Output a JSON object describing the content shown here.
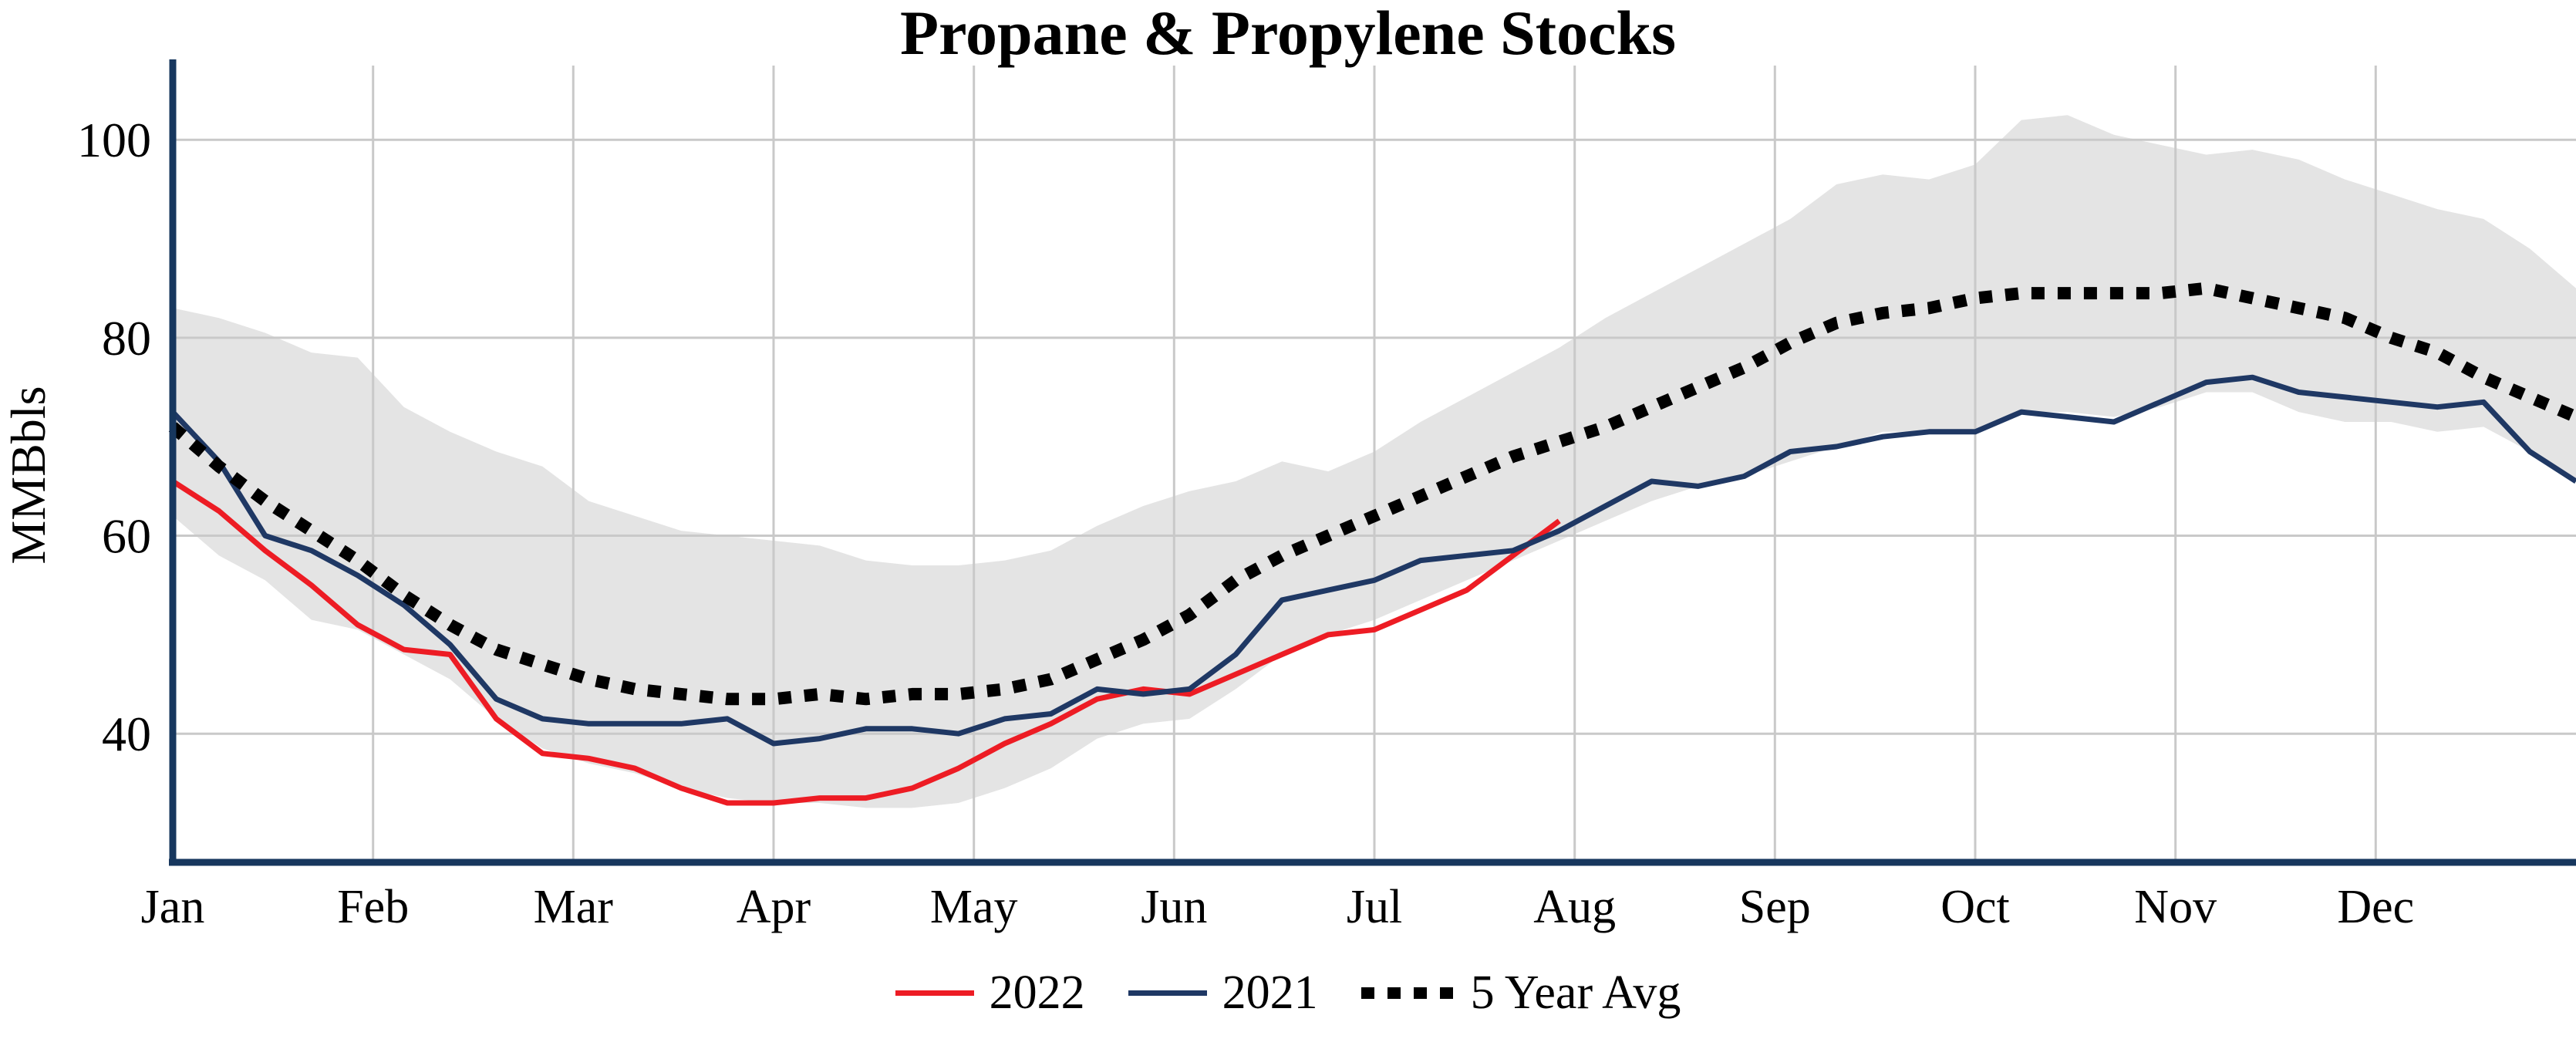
{
  "title": "Propane & Propylene Stocks",
  "ylabel": "MMBbls",
  "legend": [
    {
      "label": "2022"
    },
    {
      "label": "2021"
    },
    {
      "label": "5 Year Avg"
    }
  ],
  "chart_data": {
    "type": "line",
    "title": "Propane & Propylene Stocks",
    "xlabel": "",
    "ylabel": "MMBbls",
    "x_unit": "week-of-year (0-52), Jan 1 at left edge",
    "months": [
      "Jan",
      "Feb",
      "Mar",
      "Apr",
      "May",
      "Jun",
      "Jul",
      "Aug",
      "Sep",
      "Oct",
      "Nov",
      "Dec"
    ],
    "yticks": [
      40,
      60,
      80,
      100
    ],
    "ylim": [
      27,
      107.5
    ],
    "grid": true,
    "grid_color": "#c9c9c9",
    "axis_color": "#17375e",
    "legend_position": "bottom-center",
    "band": {
      "color": "#e4e4e4",
      "upper": [
        83,
        82,
        80.5,
        78.5,
        78,
        73,
        70.5,
        68.5,
        67,
        63.5,
        62,
        60.5,
        60,
        59.5,
        59,
        57.5,
        57,
        57,
        57.5,
        58.5,
        61,
        63,
        64.5,
        65.5,
        67.5,
        66.5,
        68.5,
        71.5,
        74,
        76.5,
        79,
        82,
        84.5,
        87,
        89.5,
        92,
        95.5,
        96.5,
        96,
        97.5,
        102,
        102.5,
        100.5,
        99.5,
        98.5,
        99,
        98,
        96,
        94.5,
        93,
        92,
        89,
        85
      ],
      "lower": [
        62,
        58,
        55.5,
        51.5,
        50.5,
        48,
        45.5,
        41.5,
        38.5,
        37,
        36,
        34.5,
        33.5,
        33,
        33,
        32.5,
        32.5,
        33,
        34.5,
        36.5,
        39.5,
        41,
        41.5,
        44.5,
        48,
        50,
        51.5,
        53.5,
        55.5,
        57.5,
        59.5,
        61.5,
        63.5,
        65,
        66,
        67.5,
        69,
        70.5,
        70.5,
        70.5,
        72.5,
        72.5,
        72,
        73,
        74.5,
        74.5,
        72.5,
        71.5,
        71.5,
        70.5,
        71,
        68.5,
        65.5
      ]
    },
    "series": [
      {
        "name": "2022",
        "color": "#ed1c24",
        "style": "solid",
        "values": [
          65.5,
          62.5,
          58.5,
          55,
          51,
          48.5,
          48,
          41.5,
          38,
          37.5,
          36.5,
          34.5,
          33,
          33,
          33.5,
          33.5,
          34.5,
          36.5,
          39,
          41,
          43.5,
          44.5,
          44,
          46,
          48,
          50,
          50.5,
          52.5,
          54.5,
          58,
          61.5
        ]
      },
      {
        "name": "2021",
        "color": "#1f3864",
        "style": "solid",
        "values": [
          72.5,
          67.5,
          60,
          58.5,
          56,
          53,
          49,
          43.5,
          41.5,
          41,
          41,
          41,
          41.5,
          39,
          39.5,
          40.5,
          40.5,
          40,
          41.5,
          42,
          44.5,
          44,
          44.5,
          48,
          53.5,
          54.5,
          55.5,
          57.5,
          58,
          58.5,
          60.5,
          63,
          65.5,
          65,
          66,
          68.5,
          69,
          70,
          70.5,
          70.5,
          72.5,
          72,
          71.5,
          73.5,
          75.5,
          76,
          74.5,
          74,
          73.5,
          73,
          73.5,
          68.5,
          65.5
        ]
      },
      {
        "name": "5 Year Avg",
        "color": "#000000",
        "style": "dotted",
        "values": [
          71,
          67,
          63.5,
          60.5,
          57.5,
          54,
          51,
          48.5,
          47,
          45.5,
          44.5,
          44,
          43.5,
          43.5,
          44,
          43.5,
          44,
          44,
          44.5,
          45.5,
          47.5,
          49.5,
          52,
          55.5,
          58,
          60,
          62,
          64,
          66,
          68,
          69.5,
          71,
          73,
          75,
          77,
          79.5,
          81.5,
          82.5,
          83,
          84,
          84.5,
          84.5,
          84.5,
          84.5,
          85,
          84,
          83,
          82,
          80,
          78.5,
          76,
          74,
          72
        ]
      }
    ]
  }
}
